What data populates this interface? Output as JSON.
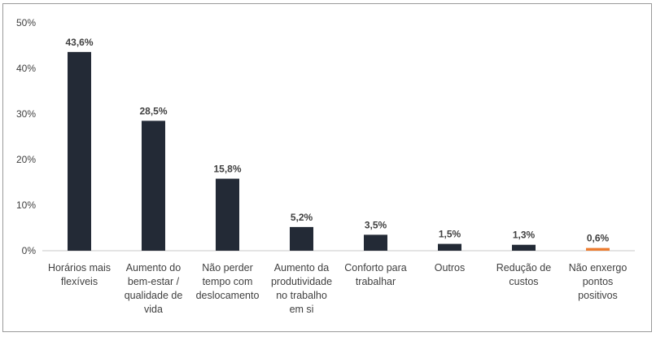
{
  "chart_data": {
    "type": "bar",
    "title": "",
    "xlabel": "",
    "ylabel": "",
    "ylim": [
      0,
      50
    ],
    "yticks": [
      "0%",
      "10%",
      "20%",
      "30%",
      "40%",
      "50%"
    ],
    "grid": false,
    "legend": false,
    "categories": [
      [
        "Horários mais",
        "flexíveis"
      ],
      [
        "Aumento do",
        "bem-estar /",
        "qualidade de",
        "vida"
      ],
      [
        "Não perder",
        "tempo com",
        "deslocamento"
      ],
      [
        "Aumento da",
        "produtividade",
        "no trabalho",
        "em si"
      ],
      [
        "Conforto para",
        "trabalhar"
      ],
      [
        "Outros"
      ],
      [
        "Redução de",
        "custos"
      ],
      [
        "Não enxergo",
        "pontos",
        "positivos"
      ]
    ],
    "values": [
      43.6,
      28.5,
      15.8,
      5.2,
      3.5,
      1.5,
      1.3,
      0.6
    ],
    "value_labels": [
      "43,6%",
      "28,5%",
      "15,8%",
      "5,2%",
      "3,5%",
      "1,5%",
      "1,3%",
      "0,6%"
    ],
    "colors": [
      "#232a36",
      "#232a36",
      "#232a36",
      "#232a36",
      "#232a36",
      "#232a36",
      "#232a36",
      "#ed7d31"
    ]
  }
}
